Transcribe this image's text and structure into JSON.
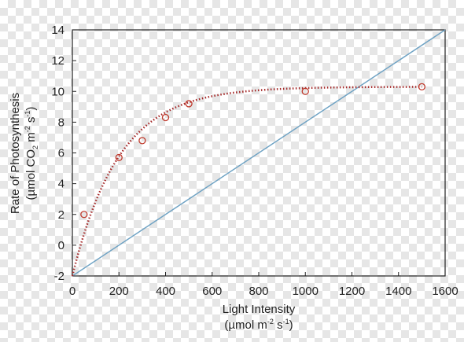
{
  "chart_data": {
    "type": "scatter",
    "xlabel": [
      "Light Intensity",
      "(µmol m⁻² s⁻¹)"
    ],
    "ylabel": [
      "Rate of Photosynthesis",
      "(µmol CO₂ m⁻² s⁻¹)"
    ],
    "xlim": [
      0,
      1600
    ],
    "ylim": [
      -2,
      14
    ],
    "xticks": [
      0,
      200,
      400,
      600,
      800,
      1000,
      1200,
      1400,
      1600
    ],
    "yticks": [
      -2,
      0,
      2,
      4,
      6,
      8,
      10,
      12,
      14
    ],
    "grid": false,
    "points": [
      {
        "x": 50,
        "y": 2.0
      },
      {
        "x": 200,
        "y": 5.7
      },
      {
        "x": 300,
        "y": 6.8
      },
      {
        "x": 400,
        "y": 8.3
      },
      {
        "x": 500,
        "y": 9.2
      },
      {
        "x": 1000,
        "y": 10.0
      },
      {
        "x": 1500,
        "y": 10.3
      }
    ],
    "fit_curve": {
      "style": "dotted",
      "color": "#a52a2a",
      "asymptote": 10.3,
      "intercept": -2,
      "rate": 0.005
    },
    "line": {
      "from": [
        0,
        -2
      ],
      "to": [
        1600,
        14
      ],
      "color": "#6fa3c4"
    },
    "marker_color": "#c0392b"
  }
}
